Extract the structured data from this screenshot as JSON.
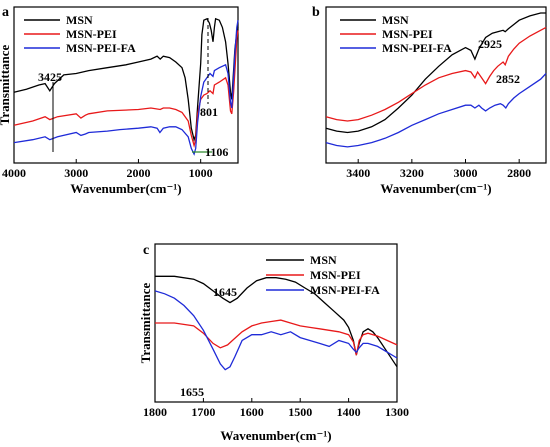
{
  "chart_data": [
    {
      "panel_label": "a",
      "type": "line",
      "xlabel": "Wavenumber(cm⁻¹)",
      "ylabel": "Transmittance",
      "xlim": [
        4000,
        400
      ],
      "ylim": [
        0,
        100
      ],
      "x_ticks": [
        4000,
        3000,
        2000,
        1000
      ],
      "legend_placement": "top-left",
      "series": [
        {
          "name": "MSN",
          "color": "#000000",
          "x": [
            4000,
            3800,
            3600,
            3500,
            3425,
            3350,
            3200,
            3000,
            2800,
            2500,
            2200,
            2000,
            1800,
            1700,
            1650,
            1600,
            1500,
            1400,
            1300,
            1250,
            1200,
            1150,
            1106,
            1080,
            1050,
            1000,
            980,
            950,
            900,
            860,
            830,
            801,
            780,
            760,
            700,
            650,
            600,
            560,
            520,
            500,
            470,
            450,
            420,
            400
          ],
          "y": [
            45,
            47,
            50,
            51,
            46,
            51,
            57,
            58,
            60,
            62,
            64,
            66,
            68,
            70,
            68,
            70,
            69,
            66,
            62,
            55,
            40,
            20,
            12,
            15,
            35,
            65,
            85,
            95,
            96,
            93,
            88,
            80,
            90,
            96,
            95,
            90,
            80,
            65,
            45,
            40,
            60,
            75,
            86,
            90
          ]
        },
        {
          "name": "MSN-PEI",
          "color": "#e8191a",
          "x": [
            4000,
            3700,
            3500,
            3425,
            3300,
            3000,
            2925,
            2852,
            2800,
            2500,
            2000,
            1800,
            1650,
            1600,
            1500,
            1400,
            1300,
            1200,
            1150,
            1106,
            1080,
            1050,
            1000,
            950,
            900,
            850,
            801,
            780,
            700,
            600,
            560,
            520,
            500,
            470,
            450,
            420,
            400
          ],
          "y": [
            22,
            25,
            28,
            26,
            28,
            30,
            27,
            29,
            30,
            32,
            33,
            34,
            33,
            34,
            34,
            33,
            31,
            25,
            15,
            8,
            12,
            30,
            40,
            43,
            44,
            46,
            44,
            50,
            52,
            55,
            50,
            32,
            30,
            45,
            60,
            82,
            88
          ]
        },
        {
          "name": "MSN-PEI-FA",
          "color": "#1f2bd8",
          "x": [
            4000,
            3700,
            3500,
            3425,
            3300,
            3000,
            2925,
            2852,
            2800,
            2500,
            2300,
            2000,
            1800,
            1700,
            1655,
            1600,
            1500,
            1400,
            1300,
            1200,
            1150,
            1106,
            1080,
            1050,
            1000,
            950,
            900,
            850,
            801,
            780,
            700,
            600,
            560,
            520,
            500,
            470,
            450,
            420,
            400
          ],
          "y": [
            10,
            12,
            14,
            12,
            14,
            17,
            15,
            16,
            17,
            18,
            19,
            20,
            21,
            20,
            17,
            20,
            21,
            21,
            19,
            14,
            6,
            2,
            6,
            24,
            42,
            52,
            55,
            58,
            56,
            60,
            62,
            64,
            58,
            38,
            34,
            55,
            72,
            90,
            95
          ]
        }
      ],
      "annotations": [
        {
          "text": "3425",
          "x": 3425
        },
        {
          "text": "801",
          "x": 801
        },
        {
          "text": "1106",
          "x": 1106
        }
      ]
    },
    {
      "panel_label": "b",
      "type": "line",
      "xlabel": "Wavenumber(cm⁻¹)",
      "xlim": [
        3520,
        2700
      ],
      "ylim": [
        0,
        100
      ],
      "x_ticks": [
        3400,
        3200,
        3000,
        2800
      ],
      "legend_placement": "top-left",
      "series": [
        {
          "name": "MSN",
          "color": "#000000",
          "x": [
            3520,
            3480,
            3440,
            3400,
            3350,
            3300,
            3250,
            3200,
            3150,
            3100,
            3050,
            3000,
            2980,
            2965,
            2950,
            2935,
            2925,
            2900,
            2880,
            2860,
            2852,
            2840,
            2820,
            2800,
            2760,
            2720,
            2700
          ],
          "y": [
            20,
            18,
            17,
            18,
            21,
            26,
            34,
            43,
            54,
            63,
            71,
            76,
            74,
            68,
            75,
            80,
            83,
            86,
            87,
            88,
            87,
            89,
            92,
            95,
            98,
            100,
            100
          ]
        },
        {
          "name": "MSN-PEI",
          "color": "#e8191a",
          "x": [
            3520,
            3480,
            3440,
            3400,
            3350,
            3300,
            3250,
            3200,
            3150,
            3100,
            3050,
            3000,
            2980,
            2965,
            2955,
            2940,
            2925,
            2910,
            2895,
            2880,
            2860,
            2852,
            2840,
            2820,
            2800,
            2760,
            2720,
            2700
          ],
          "y": [
            28,
            26,
            25,
            26,
            29,
            33,
            38,
            44,
            50,
            55,
            58,
            60,
            59,
            55,
            59,
            55,
            51,
            56,
            60,
            63,
            66,
            64,
            70,
            75,
            79,
            84,
            88,
            90
          ]
        },
        {
          "name": "MSN-PEI-FA",
          "color": "#1f2bd8",
          "x": [
            3520,
            3480,
            3440,
            3400,
            3350,
            3300,
            3250,
            3200,
            3150,
            3100,
            3050,
            3000,
            2980,
            2965,
            2950,
            2940,
            2925,
            2910,
            2890,
            2870,
            2860,
            2850,
            2840,
            2820,
            2800,
            2760,
            2720,
            2700
          ],
          "y": [
            10,
            8,
            7,
            8,
            10,
            13,
            17,
            22,
            26,
            30,
            33,
            36,
            36,
            34,
            36,
            34,
            32,
            34,
            36,
            37,
            36,
            34,
            37,
            41,
            44,
            49,
            54,
            58
          ]
        }
      ],
      "annotations": [
        {
          "text": "2925",
          "x": 2925
        },
        {
          "text": "2852",
          "x": 2852
        }
      ]
    },
    {
      "panel_label": "c",
      "type": "line",
      "xlabel": "Wavenumber(cm⁻¹)",
      "ylabel": "Transmittance",
      "xlim": [
        1800,
        1300
      ],
      "ylim": [
        0,
        100
      ],
      "x_ticks": [
        1800,
        1700,
        1600,
        1500,
        1400,
        1300
      ],
      "legend_placement": "top-right",
      "series": [
        {
          "name": "MSN",
          "color": "#000000",
          "x": [
            1800,
            1760,
            1720,
            1700,
            1680,
            1660,
            1645,
            1630,
            1610,
            1590,
            1570,
            1550,
            1530,
            1510,
            1490,
            1470,
            1450,
            1430,
            1410,
            1400,
            1390,
            1384,
            1378,
            1370,
            1360,
            1350,
            1340,
            1320,
            1300
          ],
          "y": [
            82,
            82,
            80,
            77,
            72,
            67,
            64,
            67,
            74,
            79,
            81,
            81,
            80,
            78,
            74,
            70,
            64,
            58,
            52,
            47,
            38,
            28,
            36,
            44,
            46,
            44,
            40,
            30,
            20
          ]
        },
        {
          "name": "MSN-PEI",
          "color": "#e8191a",
          "x": [
            1800,
            1760,
            1720,
            1700,
            1680,
            1665,
            1650,
            1640,
            1620,
            1600,
            1580,
            1560,
            1540,
            1520,
            1500,
            1480,
            1460,
            1440,
            1420,
            1400,
            1390,
            1384,
            1378,
            1370,
            1360,
            1340,
            1320,
            1300
          ],
          "y": [
            50,
            50,
            48,
            43,
            36,
            33,
            35,
            38,
            44,
            48,
            50,
            51,
            52,
            50,
            48,
            47,
            46,
            45,
            44,
            42,
            37,
            28,
            38,
            42,
            43,
            41,
            38,
            35
          ]
        },
        {
          "name": "MSN-PEI-FA",
          "color": "#1f2bd8",
          "x": [
            1800,
            1780,
            1760,
            1740,
            1720,
            1700,
            1680,
            1665,
            1655,
            1645,
            1635,
            1620,
            1600,
            1580,
            1560,
            1540,
            1520,
            1500,
            1480,
            1460,
            1440,
            1420,
            1400,
            1390,
            1384,
            1378,
            1370,
            1360,
            1340,
            1320,
            1300
          ],
          "y": [
            72,
            70,
            67,
            62,
            55,
            45,
            32,
            22,
            18,
            20,
            27,
            38,
            42,
            42,
            44,
            42,
            44,
            40,
            38,
            36,
            34,
            38,
            36,
            32,
            30,
            33,
            36,
            36,
            34,
            30,
            26
          ]
        }
      ],
      "annotations": [
        {
          "text": "1645",
          "x": 1645
        },
        {
          "text": "1655",
          "x": 1655
        }
      ]
    }
  ]
}
